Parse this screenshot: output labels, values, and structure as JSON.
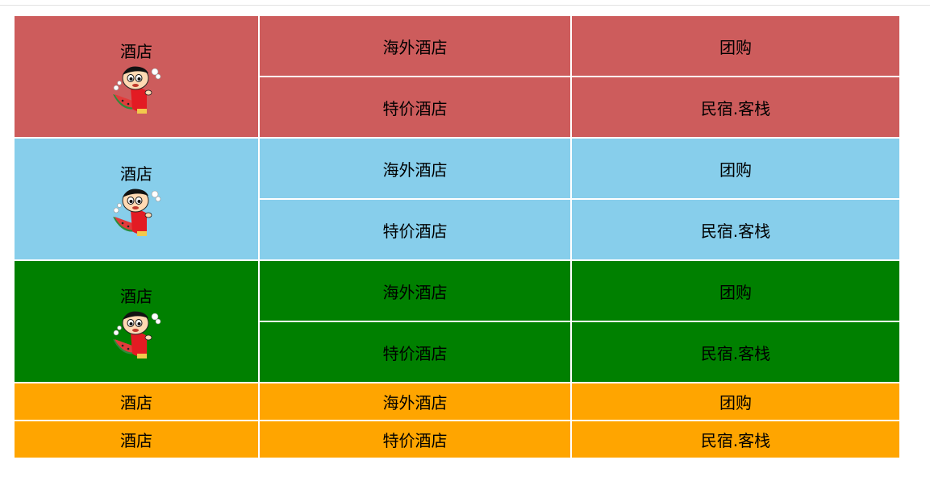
{
  "colors": {
    "group1": "#cd5c5c",
    "group2": "#87ceeb",
    "group3": "#008000",
    "group4": "#ffa500"
  },
  "groups": [
    {
      "lead": {
        "label": "酒店",
        "icon": "mascot-icon"
      },
      "rows": [
        {
          "col2": "海外酒店",
          "col3": "团购"
        },
        {
          "col2": "特价酒店",
          "col3": "民宿.客栈"
        }
      ]
    },
    {
      "lead": {
        "label": "酒店",
        "icon": "mascot-icon"
      },
      "rows": [
        {
          "col2": "海外酒店",
          "col3": "团购"
        },
        {
          "col2": "特价酒店",
          "col3": "民宿.客栈"
        }
      ]
    },
    {
      "lead": {
        "label": "酒店",
        "icon": "mascot-icon"
      },
      "rows": [
        {
          "col2": "海外酒店",
          "col3": "团购"
        },
        {
          "col2": "特价酒店",
          "col3": "民宿.客栈"
        }
      ]
    }
  ],
  "footer_rows": [
    {
      "col1": "酒店",
      "col2": "海外酒店",
      "col3": "团购"
    },
    {
      "col1": "酒店",
      "col2": "特价酒店",
      "col3": "民宿.客栈"
    }
  ]
}
